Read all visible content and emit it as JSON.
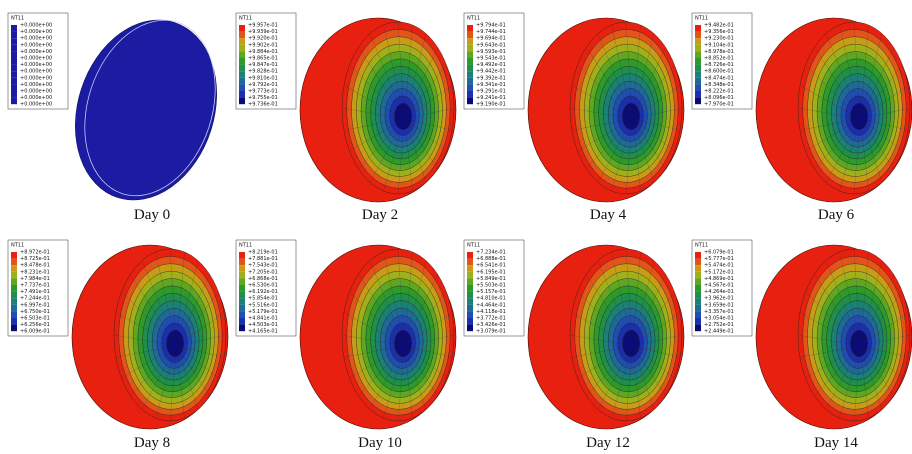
{
  "panels": [
    {
      "label": "Day 0",
      "legend": {
        "title": "NT11",
        "values": [
          "+0.000e+00",
          "+0.000e+00",
          "+0.000e+00",
          "+0.000e+00",
          "+0.000e+00",
          "+0.000e+00",
          "+0.000e+00",
          "+0.000e+00",
          "+0.000e+00",
          "+0.000e+00",
          "+0.000e+00",
          "+0.000e+00",
          "+0.000e+00"
        ]
      }
    },
    {
      "label": "Day 2",
      "legend": {
        "title": "NT11",
        "values": [
          "+9.957e-01",
          "+9.939e-01",
          "+9.920e-01",
          "+9.902e-01",
          "+9.884e-01",
          "+9.865e-01",
          "+9.847e-01",
          "+9.828e-01",
          "+9.810e-01",
          "+9.792e-01",
          "+9.773e-01",
          "+9.755e-01",
          "+9.736e-01"
        ]
      }
    },
    {
      "label": "Day 4",
      "legend": {
        "title": "NT11",
        "values": [
          "+9.794e-01",
          "+9.744e-01",
          "+9.694e-01",
          "+9.643e-01",
          "+9.593e-01",
          "+9.543e-01",
          "+9.492e-01",
          "+9.442e-01",
          "+9.392e-01",
          "+9.341e-01",
          "+9.291e-01",
          "+9.241e-01",
          "+9.190e-01"
        ]
      }
    },
    {
      "label": "Day 6",
      "legend": {
        "title": "NT11",
        "values": [
          "+9.482e-01",
          "+9.356e-01",
          "+9.230e-01",
          "+9.104e-01",
          "+8.978e-01",
          "+8.852e-01",
          "+8.726e-01",
          "+8.600e-01",
          "+8.474e-01",
          "+8.348e-01",
          "+8.222e-01",
          "+8.096e-01",
          "+7.970e-01"
        ]
      }
    },
    {
      "label": "Day 8",
      "legend": {
        "title": "NT11",
        "values": [
          "+8.972e-01",
          "+8.725e-01",
          "+8.478e-01",
          "+8.231e-01",
          "+7.984e-01",
          "+7.737e-01",
          "+7.491e-01",
          "+7.244e-01",
          "+6.997e-01",
          "+6.750e-01",
          "+6.503e-01",
          "+6.256e-01",
          "+6.009e-01"
        ]
      }
    },
    {
      "label": "Day 10",
      "legend": {
        "title": "NT11",
        "values": [
          "+8.219e-01",
          "+7.881e-01",
          "+7.543e-01",
          "+7.205e-01",
          "+6.868e-01",
          "+6.530e-01",
          "+6.192e-01",
          "+5.854e-01",
          "+5.516e-01",
          "+5.179e-01",
          "+4.841e-01",
          "+4.503e-01",
          "+4.165e-01"
        ]
      }
    },
    {
      "label": "Day 12",
      "legend": {
        "title": "NT11",
        "values": [
          "+7.234e-01",
          "+6.888e-01",
          "+6.541e-01",
          "+6.195e-01",
          "+5.849e-01",
          "+5.503e-01",
          "+5.157e-01",
          "+4.810e-01",
          "+4.464e-01",
          "+4.118e-01",
          "+3.772e-01",
          "+3.426e-01",
          "+3.079e-01"
        ]
      }
    },
    {
      "label": "Day 14",
      "legend": {
        "title": "NT11",
        "values": [
          "+6.079e-01",
          "+5.777e-01",
          "+5.474e-01",
          "+5.172e-01",
          "+4.869e-01",
          "+4.567e-01",
          "+4.264e-01",
          "+3.962e-01",
          "+3.659e-01",
          "+3.357e-01",
          "+3.054e-01",
          "+2.752e-01",
          "+2.449e-01"
        ]
      }
    }
  ]
}
